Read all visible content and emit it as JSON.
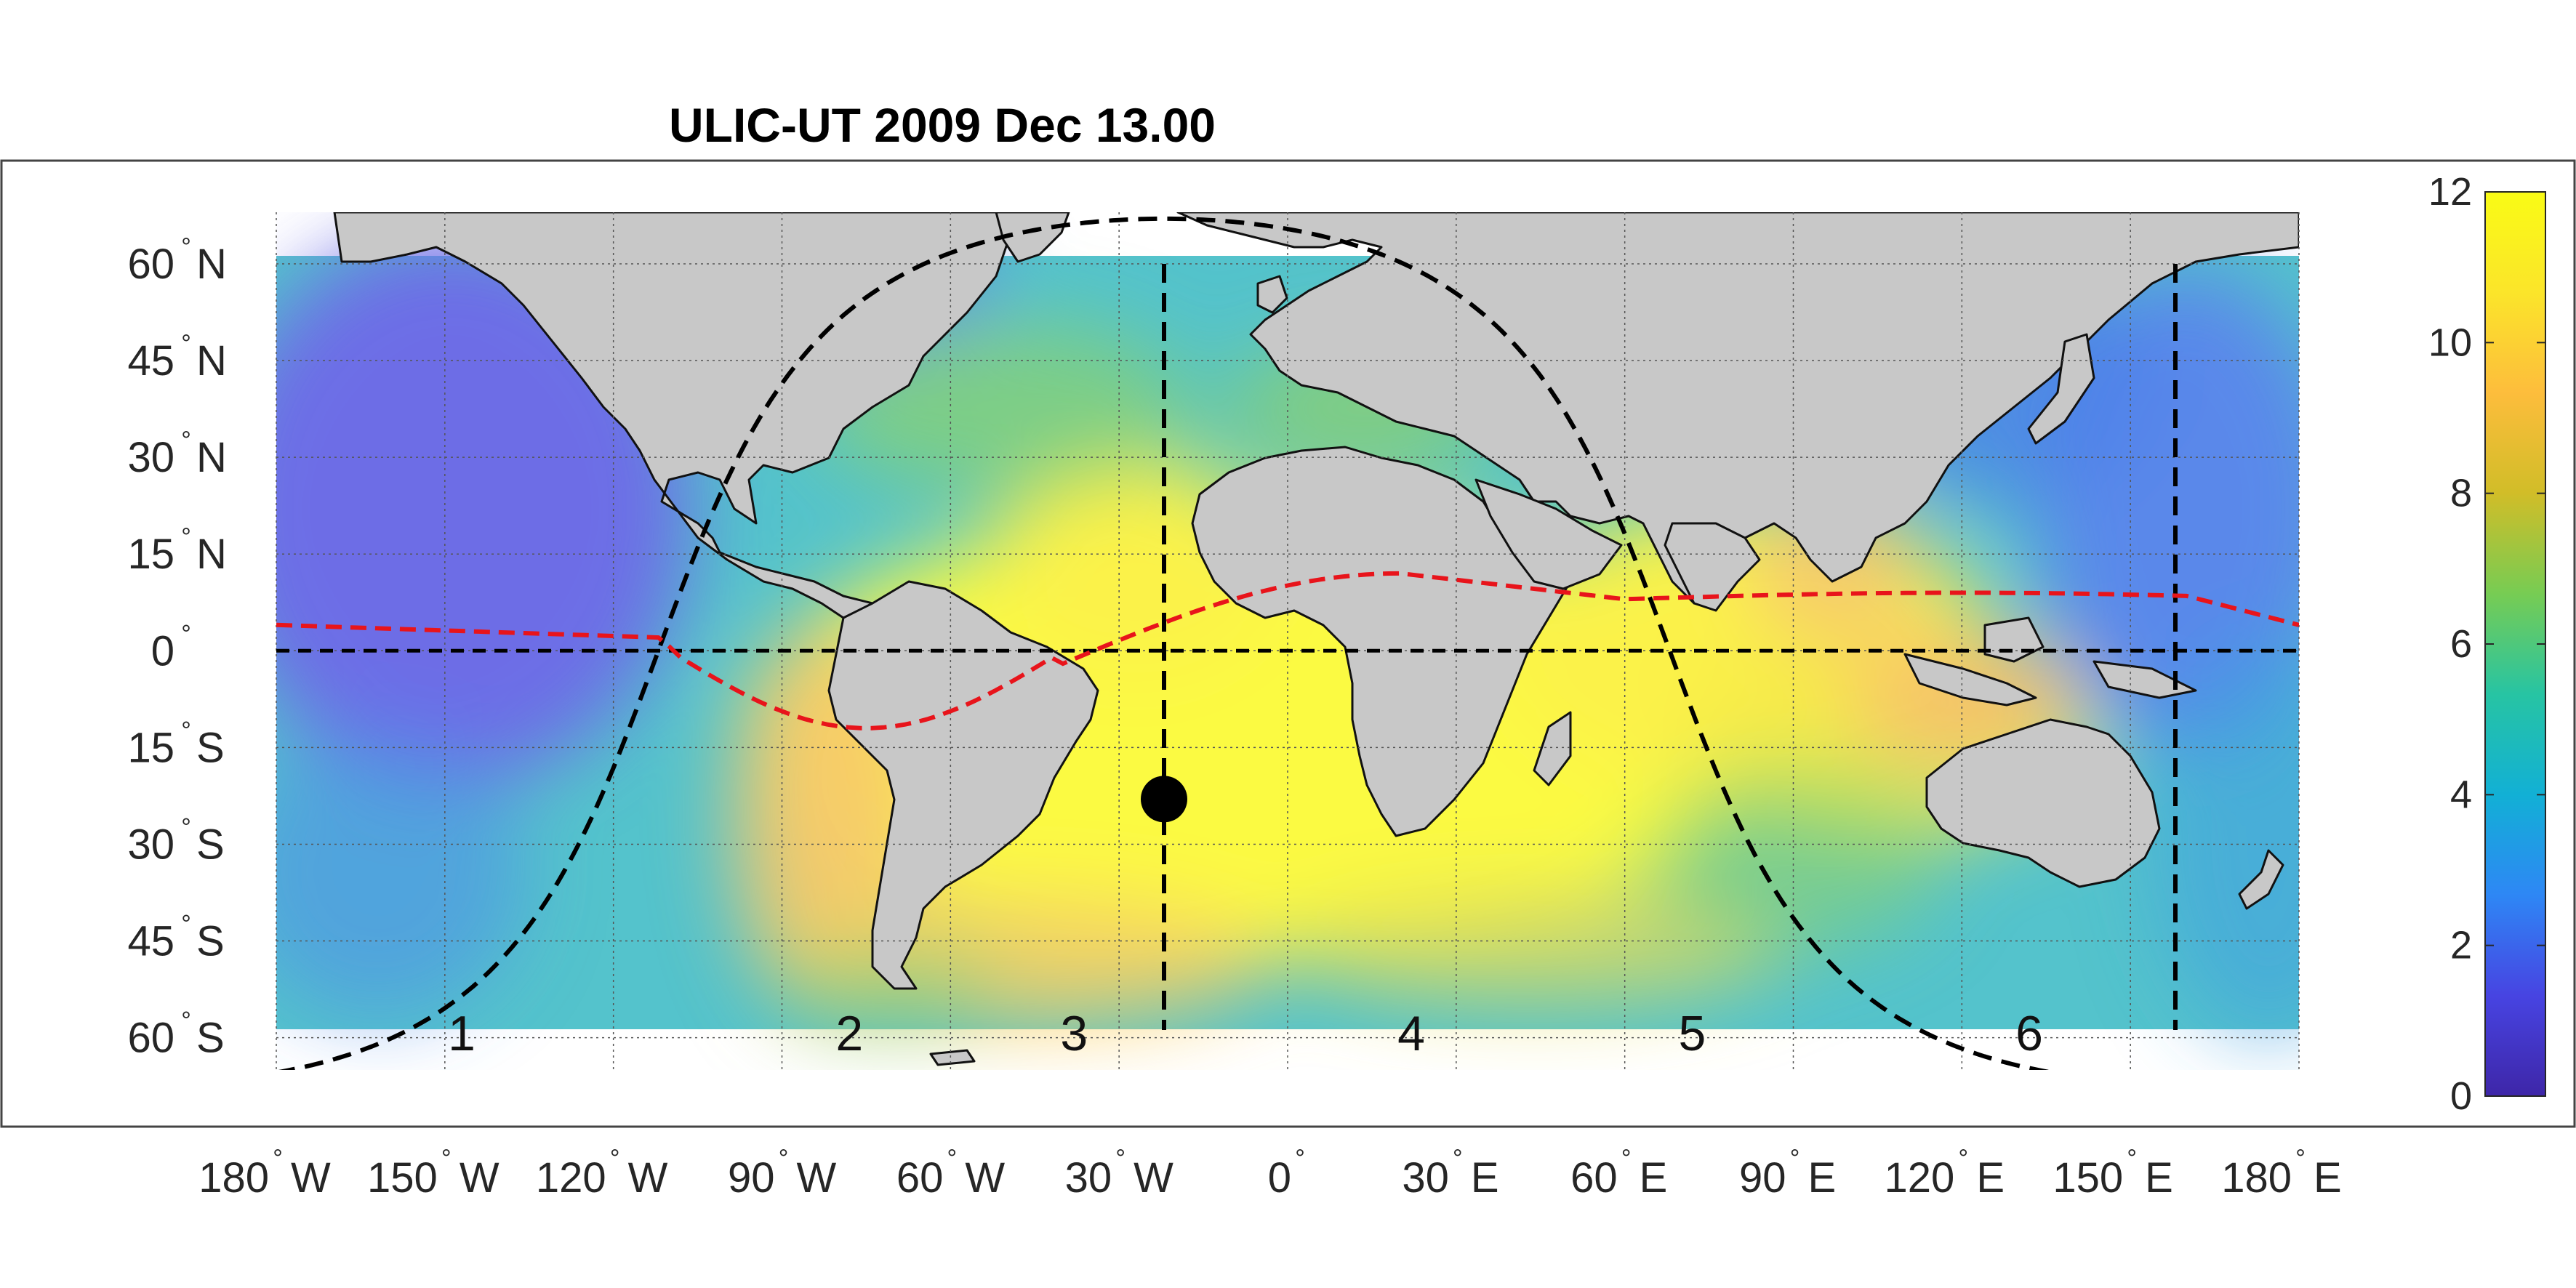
{
  "title": "ULIC-UT 2009 Dec 13.00",
  "lat_labels": [
    {
      "value": 60,
      "deg": "60",
      "hemi": "N"
    },
    {
      "value": 45,
      "deg": "45",
      "hemi": "N"
    },
    {
      "value": 30,
      "deg": "30",
      "hemi": "N"
    },
    {
      "value": 15,
      "deg": "15",
      "hemi": "N"
    },
    {
      "value": 0,
      "deg": "0",
      "hemi": ""
    },
    {
      "value": -15,
      "deg": "15",
      "hemi": "S"
    },
    {
      "value": -30,
      "deg": "30",
      "hemi": "S"
    },
    {
      "value": -45,
      "deg": "45",
      "hemi": "S"
    },
    {
      "value": -60,
      "deg": "60",
      "hemi": "S"
    }
  ],
  "lon_labels": [
    {
      "value": -180,
      "deg": "180",
      "hemi": "W"
    },
    {
      "value": -150,
      "deg": "150",
      "hemi": "W"
    },
    {
      "value": -120,
      "deg": "120",
      "hemi": "W"
    },
    {
      "value": -90,
      "deg": "90",
      "hemi": "W"
    },
    {
      "value": -60,
      "deg": "60",
      "hemi": "W"
    },
    {
      "value": -30,
      "deg": "30",
      "hemi": "W"
    },
    {
      "value": 0,
      "deg": "0",
      "hemi": ""
    },
    {
      "value": 30,
      "deg": "30",
      "hemi": "E"
    },
    {
      "value": 60,
      "deg": "60",
      "hemi": "E"
    },
    {
      "value": 90,
      "deg": "90",
      "hemi": "E"
    },
    {
      "value": 120,
      "deg": "120",
      "hemi": "E"
    },
    {
      "value": 150,
      "deg": "150",
      "hemi": "E"
    },
    {
      "value": 180,
      "deg": "180",
      "hemi": "E"
    }
  ],
  "zones": [
    {
      "label": "1",
      "lon": -147
    },
    {
      "label": "2",
      "lon": -78
    },
    {
      "label": "3",
      "lon": -38
    },
    {
      "label": "4",
      "lon": 22
    },
    {
      "label": "5",
      "lon": 72
    },
    {
      "label": "6",
      "lon": 132
    }
  ],
  "colorbar": {
    "min": 0,
    "max": 12,
    "ticks": [
      "0",
      "2",
      "4",
      "6",
      "8",
      "10",
      "12"
    ],
    "colormap": [
      "#3e26a8",
      "#4744e2",
      "#2e87f5",
      "#12b0d5",
      "#27c4a3",
      "#77cc53",
      "#d1bd28",
      "#fdbd3c",
      "#fbe52a",
      "#f9fb15"
    ]
  },
  "map_extent": {
    "lon": [
      -180,
      180
    ],
    "lat": [
      -65,
      68
    ]
  },
  "subsolar_point": {
    "lon": -22,
    "lat": -23
  },
  "meridian_line_lons": [
    -22,
    158
  ],
  "equator_lat": 0,
  "colors": {
    "land": "#c8c8c8",
    "terminator": "#000000",
    "magnetic_equator": "#e8141b",
    "ocean_low": "#6a6ce8",
    "ocean_mid": "#4cc6cf",
    "ocean_high": "#fbfa48"
  }
}
